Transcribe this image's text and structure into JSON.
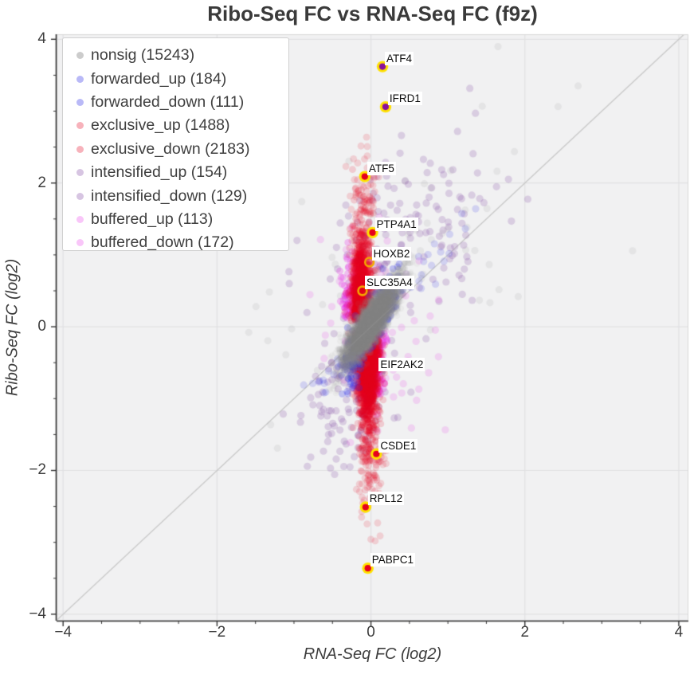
{
  "chart_data": {
    "type": "scatter",
    "title": "Ribo-Seq FC vs RNA-Seq FC (f9z)",
    "xlabel": "RNA-Seq FC (log2)",
    "ylabel": "Ribo-Seq FC (log2)",
    "xlim": [
      -4.085,
      4.125
    ],
    "ylim": [
      -4.09,
      4.07
    ],
    "x_ticks": {
      "values": [
        -4,
        -2,
        0,
        2,
        4
      ],
      "labels": [
        "−4",
        "−2",
        "0",
        "2",
        "4"
      ]
    },
    "y_ticks": {
      "values": [
        -4,
        -2,
        0,
        2,
        4
      ],
      "labels": [
        "−4",
        "−2",
        "0",
        "2",
        "4"
      ]
    },
    "minor_tick_step": 0.5,
    "grid": true,
    "identity_line": true,
    "plot_background": "#f1f1f2",
    "gridline_color": "#e1e1e3",
    "identity_line_color": "#c9c9c9",
    "legend": {
      "position": "upper-left",
      "entries": [
        {
          "label": "nonsig (15243)",
          "name": "nonsig",
          "count": 15243,
          "color": "#8f8f8f",
          "swatch_opacity": 0.45
        },
        {
          "label": "forwarded_up (184)",
          "name": "forwarded_up",
          "count": 184,
          "color": "#2a2ae6",
          "swatch_opacity": 0.33
        },
        {
          "label": "forwarded_down (111)",
          "name": "forwarded_down",
          "count": 111,
          "color": "#2a2ae6",
          "swatch_opacity": 0.33
        },
        {
          "label": "exclusive_up (1488)",
          "name": "exclusive_up",
          "count": 1488,
          "color": "#e6001e",
          "swatch_opacity": 0.3
        },
        {
          "label": "exclusive_down (2183)",
          "name": "exclusive_down",
          "count": 2183,
          "color": "#e6001e",
          "swatch_opacity": 0.3
        },
        {
          "label": "intensified_up (154)",
          "name": "intensified_up",
          "count": 154,
          "color": "#7b3f9e",
          "swatch_opacity": 0.3
        },
        {
          "label": "intensified_down (129)",
          "name": "intensified_down",
          "count": 129,
          "color": "#7b3f9e",
          "swatch_opacity": 0.3
        },
        {
          "label": "buffered_up (113)",
          "name": "buffered_up",
          "count": 113,
          "color": "#e833e8",
          "swatch_opacity": 0.28
        },
        {
          "label": "buffered_down (172)",
          "name": "buffered_down",
          "count": 172,
          "color": "#e833e8",
          "swatch_opacity": 0.28
        }
      ]
    },
    "point_cloud": [
      {
        "series": "nonsig_scatter",
        "color": "#8f8f8f",
        "alpha": 0.12,
        "r": 4.5,
        "n": 60,
        "cx": 0.45,
        "cy": 0.85,
        "sx": 1.0,
        "sy": 1.1,
        "corr": 0.5,
        "half_y": 0
      },
      {
        "series": "intensified_up",
        "color": "#7b3f9e",
        "alpha": 0.2,
        "r": 4.6,
        "n": 154,
        "cx": 0.5,
        "cy": 1.3,
        "sx": 0.55,
        "sy": 0.6,
        "corr": 0.35,
        "half_y": 0
      },
      {
        "series": "intensified_down",
        "color": "#7b3f9e",
        "alpha": 0.2,
        "r": 4.6,
        "n": 129,
        "cx": -0.28,
        "cy": -1.0,
        "sx": 0.3,
        "sy": 0.55,
        "corr": 0.35,
        "half_y": 0
      },
      {
        "series": "buffered_up_scatter",
        "color": "#e833e8",
        "alpha": 0.16,
        "r": 4.6,
        "n": 31,
        "cx": -0.1,
        "cy": 0.6,
        "sx": 0.38,
        "sy": 0.42,
        "corr": 0,
        "half_y": 0
      },
      {
        "series": "buffered_down_scatter",
        "color": "#e833e8",
        "alpha": 0.16,
        "r": 4.6,
        "n": 47,
        "cx": 0.15,
        "cy": -0.55,
        "sx": 0.38,
        "sy": 0.45,
        "corr": 0,
        "half_y": 0
      },
      {
        "series": "buffered_up_strip",
        "color": "#e833e8",
        "alpha": 0.28,
        "r": 4.4,
        "n": 82,
        "cx": -0.27,
        "cy": 0.12,
        "sx": 0.06,
        "sy": 0.42,
        "corr": 0,
        "half_y": 1
      },
      {
        "series": "buffered_down_strip",
        "color": "#e833e8",
        "alpha": 0.28,
        "r": 4.4,
        "n": 125,
        "cx": 0.09,
        "cy": -0.08,
        "sx": 0.055,
        "sy": 0.48,
        "corr": 0,
        "half_y": -1
      },
      {
        "series": "exclusive_up_tail",
        "color": "#e6001e",
        "alpha": 0.14,
        "r": 4.4,
        "n": 60,
        "cx": -0.08,
        "cy": 1.55,
        "sx": 0.09,
        "sy": 0.42,
        "corr": 0,
        "half_y": 1
      },
      {
        "series": "exclusive_down_tail",
        "color": "#e6001e",
        "alpha": 0.14,
        "r": 4.4,
        "n": 90,
        "cx": 0.0,
        "cy": -1.65,
        "sx": 0.09,
        "sy": 0.45,
        "corr": 0,
        "half_y": -1
      },
      {
        "series": "exclusive_up_main",
        "color": "#e6001e",
        "alpha": 0.16,
        "r": 4.4,
        "n": 1428,
        "cx": -0.12,
        "cy": 0.08,
        "sx": 0.062,
        "sy": 0.55,
        "corr": 0,
        "half_y": 1
      },
      {
        "series": "exclusive_down_main",
        "color": "#e6001e",
        "alpha": 0.16,
        "r": 4.4,
        "n": 2093,
        "cx": -0.035,
        "cy": -0.05,
        "sx": 0.065,
        "sy": 0.62,
        "corr": 0,
        "half_y": -1
      },
      {
        "series": "forwarded_up_outer",
        "color": "#2a2ae6",
        "alpha": 0.16,
        "r": 4.6,
        "n": 26,
        "cx": 0.75,
        "cy": 0.85,
        "sx": 0.4,
        "sy": 0.42,
        "corr": 0.92,
        "half_y": 0
      },
      {
        "series": "forwarded_down_outer",
        "color": "#2a2ae6",
        "alpha": 0.16,
        "r": 4.6,
        "n": 18,
        "cx": -0.55,
        "cy": -0.72,
        "sx": 0.28,
        "sy": 0.32,
        "corr": 0.9,
        "half_y": 0
      },
      {
        "series": "forwarded_up_main",
        "color": "#2a2ae6",
        "alpha": 0.25,
        "r": 4.4,
        "n": 158,
        "cx": 0.16,
        "cy": 0.3,
        "sx": 0.09,
        "sy": 0.22,
        "corr": 0.55,
        "half_y": 0
      },
      {
        "series": "forwarded_down_main",
        "color": "#2a2ae6",
        "alpha": 0.25,
        "r": 4.4,
        "n": 93,
        "cx": -0.21,
        "cy": -0.42,
        "sx": 0.1,
        "sy": 0.24,
        "corr": 0.5,
        "half_y": 0
      },
      {
        "series": "nonsig_core",
        "color": "#8c8c8c",
        "alpha": 0.07,
        "r": 3.8,
        "n": 6500,
        "cx": 0.0,
        "cy": 0.05,
        "sx": 0.17,
        "sy": 0.28,
        "corr": 0.85,
        "half_y": 0
      }
    ],
    "labeled_genes": [
      {
        "name": "ATF4",
        "x": 0.15,
        "y": 3.62,
        "marker": "filled",
        "fill": "#8a0f9c"
      },
      {
        "name": "IFRD1",
        "x": 0.19,
        "y": 3.06,
        "marker": "filled",
        "fill": "#8a0f9c"
      },
      {
        "name": "ATF5",
        "x": -0.08,
        "y": 2.09,
        "marker": "filled",
        "fill": "#e6001e"
      },
      {
        "name": "PTP4A1",
        "x": 0.02,
        "y": 1.31,
        "marker": "filled",
        "fill": "#e6001e"
      },
      {
        "name": "HOXB2",
        "x": -0.02,
        "y": 0.9,
        "marker": "open",
        "fill": "none"
      },
      {
        "name": "SLC35A4",
        "x": -0.11,
        "y": 0.5,
        "marker": "open",
        "fill": "none"
      },
      {
        "name": "EIF2AK2",
        "x": 0.07,
        "y": -0.64,
        "marker": "hidden",
        "fill": "none"
      },
      {
        "name": "CSDE1",
        "x": 0.07,
        "y": -1.77,
        "marker": "filled",
        "fill": "#e6001e"
      },
      {
        "name": "RPL12",
        "x": -0.07,
        "y": -2.51,
        "marker": "filled",
        "fill": "#e6001e"
      },
      {
        "name": "PABPC1",
        "x": -0.04,
        "y": -3.36,
        "marker": "filled",
        "fill": "#e6001e"
      }
    ],
    "marker_ring_color": "#ffe100",
    "open_ring_color": "#f5a800"
  }
}
